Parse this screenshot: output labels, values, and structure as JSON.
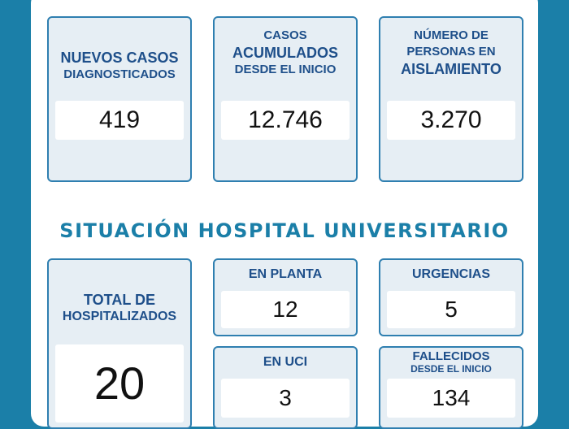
{
  "top_cards": {
    "nuevos": {
      "line1": "NUEVOS CASOS",
      "line2": "DIAGNOSTICADOS",
      "value": "419"
    },
    "acumulados": {
      "line1": "CASOS",
      "line2": "ACUMULADOS",
      "line3": "DESDE EL INICIO",
      "value": "12.746"
    },
    "aislamiento": {
      "line1": "NÚMERO DE",
      "line2": "PERSONAS EN",
      "line3": "AISLAMIENTO",
      "value": "3.270"
    }
  },
  "section_title": "SITUACIÓN HOSPITAL UNIVERSITARIO",
  "hospital": {
    "total": {
      "line1": "TOTAL DE",
      "line2": "HOSPITALIZADOS",
      "value": "20"
    },
    "planta": {
      "label": "EN PLANTA",
      "value": "12"
    },
    "urgencias": {
      "label": "URGENCIAS",
      "value": "5"
    },
    "uci": {
      "label": "EN UCI",
      "value": "3"
    },
    "fallecidos": {
      "line1": "FALLECIDOS",
      "line2": "DESDE EL INICIO",
      "value": "134"
    }
  },
  "colors": {
    "background": "#1b7fa8",
    "card_border": "#2f7fb0",
    "card_fill": "#e6eef4",
    "label": "#1e4f8a"
  }
}
